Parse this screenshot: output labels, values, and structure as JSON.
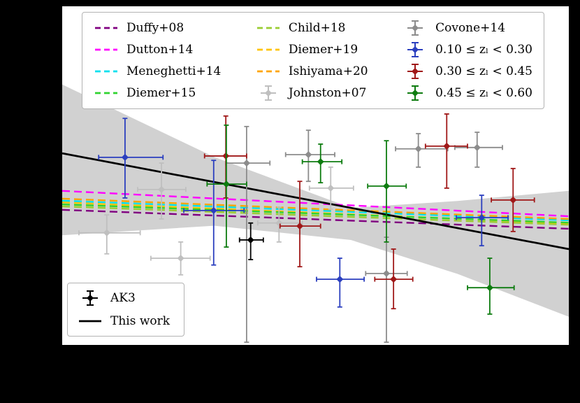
{
  "figure": {
    "background": "#000000",
    "plot_background": "#ffffff"
  },
  "legend_top": {
    "col1": [
      {
        "key": "duffy08",
        "label": "Duffy+08",
        "color": "#800080",
        "style": "dash"
      },
      {
        "key": "dutton14",
        "label": "Dutton+14",
        "color": "#ff00ff",
        "style": "dash"
      },
      {
        "key": "meneghetti14",
        "label": "Meneghetti+14",
        "color": "#00e0ee",
        "style": "dash"
      },
      {
        "key": "diemer15",
        "label": "Diemer+15",
        "color": "#2fd42f",
        "style": "dash"
      }
    ],
    "col2": [
      {
        "key": "child18",
        "label": "Child+18",
        "color": "#9acd32",
        "style": "dash"
      },
      {
        "key": "diemer19",
        "label": "Diemer+19",
        "color": "#ffc400",
        "style": "dash"
      },
      {
        "key": "ishiyama20",
        "label": "Ishiyama+20",
        "color": "#ffa500",
        "style": "dash"
      },
      {
        "key": "johnston07",
        "label": "Johnston+07",
        "color": "#bfbfbf",
        "style": "errorbar"
      }
    ],
    "col3": [
      {
        "key": "covone14",
        "label": "Covone+14",
        "color": "#8c8c8c",
        "style": "errorbar"
      },
      {
        "key": "zbin1",
        "label": "0.10 ≤ zₗ < 0.30",
        "color": "#2b3fbf",
        "style": "errorbar"
      },
      {
        "key": "zbin2",
        "label": "0.30 ≤ zₗ < 0.45",
        "color": "#a01818",
        "style": "errorbar"
      },
      {
        "key": "zbin3",
        "label": "0.45 ≤ zₗ < 0.60",
        "color": "#0e7c10",
        "style": "errorbar"
      }
    ]
  },
  "legend_bottom": {
    "entries": [
      {
        "key": "ak3",
        "label": "AK3",
        "color": "#000000",
        "style": "errorbar"
      },
      {
        "key": "thiswork",
        "label": "This work",
        "color": "#000000",
        "style": "line"
      }
    ]
  },
  "chart_data": {
    "type": "scatter",
    "coord_note": "Axis tick labels are not visible in the screenshot (rendered outside the white plot on a black background). All coordinates below are fractions of the plot area: x from 0 (left) to 1 (right), y from 0 (top) to 1 (bottom).",
    "confidence_band": {
      "name": "This work confidence band",
      "color": "#c6c6c6",
      "polygon": [
        [
          0.0,
          0.231
        ],
        [
          0.3,
          0.445
        ],
        [
          0.57,
          0.595
        ],
        [
          0.78,
          0.575
        ],
        [
          1.0,
          0.545
        ],
        [
          1.0,
          0.917
        ],
        [
          0.78,
          0.79
        ],
        [
          0.57,
          0.69
        ],
        [
          0.3,
          0.648
        ],
        [
          0.0,
          0.676
        ]
      ]
    },
    "model_lines": [
      {
        "key": "duffy08",
        "name": "Duffy+08",
        "color": "#800080",
        "y_left": 0.601,
        "y_right": 0.657
      },
      {
        "key": "child18",
        "name": "Child+18",
        "color": "#9acd32",
        "y_left": 0.591,
        "y_right": 0.645
      },
      {
        "key": "diemer19",
        "name": "Diemer+19",
        "color": "#ffc400",
        "y_left": 0.579,
        "y_right": 0.641
      },
      {
        "key": "diemer15",
        "name": "Diemer+15",
        "color": "#2fd42f",
        "y_left": 0.585,
        "y_right": 0.639
      },
      {
        "key": "meneghetti14",
        "name": "Meneghetti+14",
        "color": "#00e0ee",
        "y_left": 0.574,
        "y_right": 0.632
      },
      {
        "key": "ishiyama20",
        "name": "Ishiyama+20",
        "color": "#ffa500",
        "y_left": 0.568,
        "y_right": 0.628
      },
      {
        "key": "dutton14",
        "name": "Dutton+14",
        "color": "#ff00ff",
        "y_left": 0.545,
        "y_right": 0.62
      }
    ],
    "fit_line": {
      "key": "thiswork",
      "name": "This work",
      "color": "#000000",
      "y_left": 0.434,
      "y_right": 0.717
    },
    "series": [
      {
        "key": "johnston07",
        "name": "Johnston+07",
        "color": "#bfbfbf",
        "points": [
          {
            "x": 0.088,
            "y": 0.669,
            "xlo": 0.033,
            "xhi": 0.154,
            "ylo": 0.616,
            "yhi": 0.731
          },
          {
            "x": 0.196,
            "y": 0.541,
            "xlo": 0.149,
            "xhi": 0.244,
            "ylo": 0.463,
            "yhi": 0.628
          },
          {
            "x": 0.234,
            "y": 0.744,
            "xlo": 0.175,
            "xhi": 0.292,
            "ylo": 0.696,
            "yhi": 0.793
          },
          {
            "x": 0.428,
            "y": 0.64,
            "xlo": 0.386,
            "xhi": 0.474,
            "ylo": 0.593,
            "yhi": 0.696
          },
          {
            "x": 0.53,
            "y": 0.537,
            "xlo": 0.488,
            "xhi": 0.575,
            "ylo": 0.475,
            "yhi": 0.599
          }
        ]
      },
      {
        "key": "covone14",
        "name": "Covone+14",
        "color": "#8c8c8c",
        "points": [
          {
            "x": 0.364,
            "y": 0.463,
            "xlo": 0.323,
            "xhi": 0.41,
            "ylo": 0.355,
            "yhi": 0.992
          },
          {
            "x": 0.486,
            "y": 0.438,
            "xlo": 0.441,
            "xhi": 0.538,
            "ylo": 0.366,
            "yhi": 0.517
          },
          {
            "x": 0.64,
            "y": 0.789,
            "xlo": 0.599,
            "xhi": 0.681,
            "ylo": 0.682,
            "yhi": 0.992
          },
          {
            "x": 0.703,
            "y": 0.421,
            "xlo": 0.658,
            "xhi": 0.761,
            "ylo": 0.376,
            "yhi": 0.475
          },
          {
            "x": 0.819,
            "y": 0.417,
            "xlo": 0.775,
            "xhi": 0.869,
            "ylo": 0.372,
            "yhi": 0.475
          }
        ]
      },
      {
        "key": "zbin1",
        "name": "0.10 ≤ zₗ < 0.30",
        "color": "#2b3fbf",
        "points": [
          {
            "x": 0.124,
            "y": 0.446,
            "xlo": 0.072,
            "xhi": 0.199,
            "ylo": 0.331,
            "yhi": 0.566
          },
          {
            "x": 0.299,
            "y": 0.603,
            "xlo": 0.24,
            "xhi": 0.359,
            "ylo": 0.455,
            "yhi": 0.764
          },
          {
            "x": 0.548,
            "y": 0.806,
            "xlo": 0.502,
            "xhi": 0.596,
            "ylo": 0.744,
            "yhi": 0.888
          },
          {
            "x": 0.828,
            "y": 0.624,
            "xlo": 0.778,
            "xhi": 0.88,
            "ylo": 0.558,
            "yhi": 0.707
          }
        ]
      },
      {
        "key": "zbin2",
        "name": "0.30 ≤ zₗ < 0.45",
        "color": "#a01818",
        "points": [
          {
            "x": 0.323,
            "y": 0.442,
            "xlo": 0.281,
            "xhi": 0.364,
            "ylo": 0.324,
            "yhi": 0.566
          },
          {
            "x": 0.469,
            "y": 0.649,
            "xlo": 0.43,
            "xhi": 0.51,
            "ylo": 0.517,
            "yhi": 0.769
          },
          {
            "x": 0.654,
            "y": 0.806,
            "xlo": 0.617,
            "xhi": 0.692,
            "ylo": 0.717,
            "yhi": 0.893
          },
          {
            "x": 0.759,
            "y": 0.413,
            "xlo": 0.717,
            "xhi": 0.8,
            "ylo": 0.318,
            "yhi": 0.537
          },
          {
            "x": 0.89,
            "y": 0.572,
            "xlo": 0.847,
            "xhi": 0.932,
            "ylo": 0.479,
            "yhi": 0.665
          }
        ]
      },
      {
        "key": "zbin3",
        "name": "0.45 ≤ zₗ < 0.60",
        "color": "#0e7c10",
        "points": [
          {
            "x": 0.324,
            "y": 0.525,
            "xlo": 0.286,
            "xhi": 0.364,
            "ylo": 0.351,
            "yhi": 0.711
          },
          {
            "x": 0.51,
            "y": 0.459,
            "xlo": 0.474,
            "xhi": 0.552,
            "ylo": 0.407,
            "yhi": 0.521
          },
          {
            "x": 0.64,
            "y": 0.531,
            "xlo": 0.603,
            "xhi": 0.679,
            "ylo": 0.397,
            "yhi": 0.696
          },
          {
            "x": 0.844,
            "y": 0.831,
            "xlo": 0.8,
            "xhi": 0.892,
            "ylo": 0.744,
            "yhi": 0.909
          }
        ]
      },
      {
        "key": "ak3",
        "name": "AK3",
        "color": "#000000",
        "points": [
          {
            "x": 0.372,
            "y": 0.69,
            "xlo": 0.35,
            "xhi": 0.397,
            "ylo": 0.64,
            "yhi": 0.748
          }
        ]
      }
    ]
  }
}
